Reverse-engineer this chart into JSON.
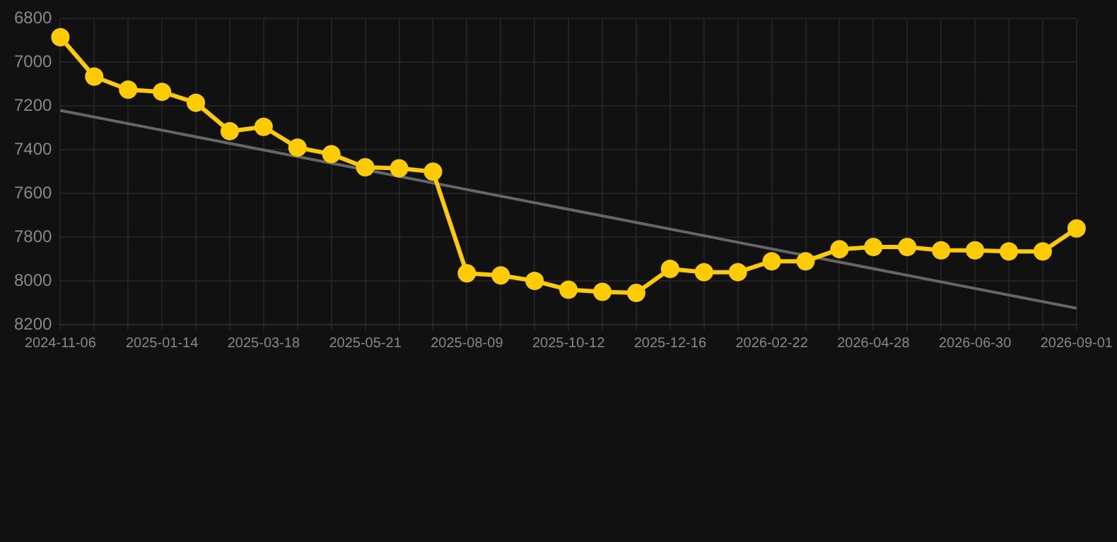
{
  "chart_data": {
    "type": "line",
    "categories": [
      "2024-11-06",
      null,
      null,
      "2025-01-14",
      null,
      null,
      "2025-03-18",
      null,
      null,
      "2025-05-21",
      null,
      null,
      "2025-08-09",
      null,
      null,
      "2025-10-12",
      null,
      null,
      "2025-12-16",
      null,
      null,
      "2026-02-22",
      null,
      null,
      "2026-04-28",
      null,
      null,
      "2026-06-30",
      null,
      null,
      "2026-09-01"
    ],
    "series": [
      {
        "type": "line",
        "color": "#ffcc00",
        "marker": "circle",
        "values": [
          6885,
          7065,
          7125,
          7135,
          7185,
          7315,
          7295,
          7390,
          7420,
          7480,
          7485,
          7500,
          7965,
          7975,
          8000,
          8040,
          8050,
          8055,
          7945,
          7960,
          7960,
          7910,
          7910,
          7855,
          7845,
          7845,
          7860,
          7860,
          7865,
          7865,
          7760
        ]
      },
      {
        "type": "line",
        "color": "#666666",
        "marker": "none",
        "values": [
          7220,
          null,
          null,
          null,
          null,
          null,
          null,
          null,
          null,
          null,
          null,
          null,
          null,
          null,
          null,
          null,
          null,
          null,
          null,
          null,
          null,
          null,
          null,
          null,
          null,
          null,
          null,
          null,
          null,
          null,
          8125
        ]
      }
    ],
    "ylim": [
      8200,
      6800
    ],
    "yticks": [
      6800,
      7000,
      7200,
      7400,
      7600,
      7800,
      8000,
      8200
    ],
    "grid": true,
    "legend": false,
    "line_style": "solid"
  }
}
